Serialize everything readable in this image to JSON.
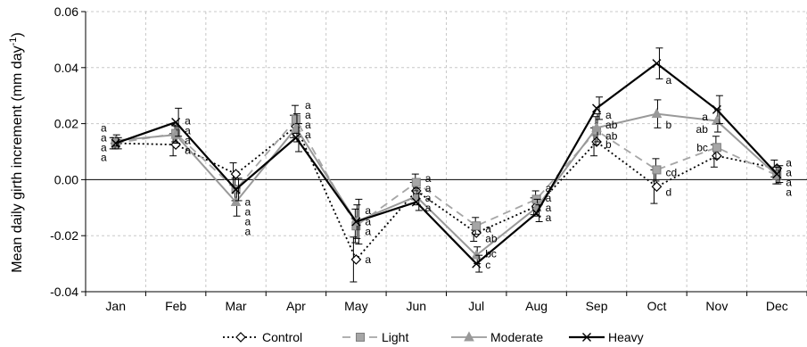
{
  "chart_data": {
    "type": "line",
    "title": "",
    "xlabel": "",
    "ylabel": "Mean daily girth increment (mm day",
    "ylabel_sup": "-1",
    "ylabel_close": ")",
    "categories": [
      "Jan",
      "Feb",
      "Mar",
      "Apr",
      "May",
      "Jun",
      "Jul",
      "Aug",
      "Sep",
      "Oct",
      "Nov",
      "Dec"
    ],
    "ylim": [
      -0.04,
      0.06
    ],
    "yticks": [
      -0.04,
      -0.02,
      0.0,
      0.02,
      0.04,
      0.06
    ],
    "ytick_labels": [
      "-0.04",
      "-0.02",
      "0.00",
      "0.02",
      "0.04",
      "0.06"
    ],
    "grid": true,
    "legend_position": "bottom",
    "series": [
      {
        "name": "Control",
        "color": "#000000",
        "dash": "dotted",
        "marker": "diamond",
        "values": [
          0.013,
          0.0125,
          0.002,
          0.019,
          -0.0285,
          -0.004,
          -0.019,
          -0.0095,
          0.0135,
          -0.0025,
          0.0085,
          0.004
        ],
        "err": [
          0.002,
          0.004,
          0.004,
          0.004,
          0.008,
          0.003,
          0.003,
          0.003,
          0.005,
          0.006,
          0.004,
          0.003
        ]
      },
      {
        "name": "Light",
        "color": "#a6a6a6",
        "dash": "dashed",
        "marker": "square",
        "values": [
          0.013,
          0.0165,
          -0.0035,
          0.0215,
          -0.0165,
          -0.001,
          -0.0165,
          -0.007,
          0.0175,
          0.0035,
          0.0115,
          0.0015
        ],
        "err": [
          0.002,
          0.003,
          0.004,
          0.005,
          0.006,
          0.003,
          0.003,
          0.003,
          0.005,
          0.004,
          0.004,
          0.003
        ]
      },
      {
        "name": "Moderate",
        "color": "#999999",
        "dash": "solid",
        "marker": "triangle",
        "values": [
          0.014,
          0.016,
          -0.008,
          0.0185,
          -0.015,
          -0.006,
          -0.027,
          -0.01,
          0.0185,
          0.0235,
          0.021,
          0.0015
        ],
        "err": [
          0.002,
          0.003,
          0.005,
          0.005,
          0.006,
          0.003,
          0.003,
          0.003,
          0.005,
          0.005,
          0.004,
          0.003
        ]
      },
      {
        "name": "Heavy",
        "color": "#000000",
        "dash": "solid",
        "marker": "x",
        "values": [
          0.013,
          0.0205,
          -0.0035,
          0.015,
          -0.015,
          -0.008,
          -0.03,
          -0.012,
          0.0255,
          0.0415,
          0.025,
          0.002
        ],
        "err": [
          0.002,
          0.005,
          0.004,
          0.005,
          0.008,
          0.003,
          0.003,
          0.003,
          0.004,
          0.0055,
          0.005,
          0.003
        ]
      }
    ],
    "annotations": [
      {
        "month": "Jan",
        "side": "left",
        "labels": [
          {
            "text": "a",
            "y": 0.0185
          },
          {
            "text": "a",
            "y": 0.015
          },
          {
            "text": "a",
            "y": 0.0115
          },
          {
            "text": "a",
            "y": 0.008
          }
        ]
      },
      {
        "month": "Feb",
        "side": "right",
        "labels": [
          {
            "text": "a",
            "y": 0.021
          },
          {
            "text": "a",
            "y": 0.0175
          },
          {
            "text": "a",
            "y": 0.014
          },
          {
            "text": "a",
            "y": 0.0105
          }
        ]
      },
      {
        "month": "Mar",
        "side": "right",
        "labels": [
          {
            "text": "a",
            "y": -0.008
          },
          {
            "text": "a",
            "y": -0.0115
          },
          {
            "text": "a",
            "y": -0.015
          },
          {
            "text": "a",
            "y": -0.0185
          }
        ]
      },
      {
        "month": "Apr",
        "side": "right",
        "labels": [
          {
            "text": "a",
            "y": 0.0265
          },
          {
            "text": "a",
            "y": 0.023
          },
          {
            "text": "a",
            "y": 0.0195
          },
          {
            "text": "a",
            "y": 0.016
          }
        ]
      },
      {
        "month": "May",
        "side": "right",
        "labels": [
          {
            "text": "a",
            "y": -0.011
          },
          {
            "text": "a",
            "y": -0.015
          },
          {
            "text": "a",
            "y": -0.0185
          },
          {
            "text": "a",
            "y": -0.0285
          }
        ]
      },
      {
        "month": "Jun",
        "side": "right",
        "labels": [
          {
            "text": "a",
            "y": 0.0005
          },
          {
            "text": "a",
            "y": -0.003
          },
          {
            "text": "a",
            "y": -0.0065
          },
          {
            "text": "a",
            "y": -0.01
          }
        ]
      },
      {
        "month": "Jul",
        "side": "right",
        "labels": [
          {
            "text": "a",
            "y": -0.0175
          },
          {
            "text": "ab",
            "y": -0.021
          },
          {
            "text": "bc",
            "y": -0.0265
          },
          {
            "text": "c",
            "y": -0.0305
          }
        ]
      },
      {
        "month": "Aug",
        "side": "right",
        "labels": [
          {
            "text": "a",
            "y": -0.003
          },
          {
            "text": "a",
            "y": -0.0065
          },
          {
            "text": "a",
            "y": -0.01
          },
          {
            "text": "a",
            "y": -0.0135
          }
        ]
      },
      {
        "month": "Sep",
        "side": "right",
        "labels": [
          {
            "text": "a",
            "y": 0.023
          },
          {
            "text": "ab",
            "y": 0.0195
          },
          {
            "text": "ab",
            "y": 0.0155
          },
          {
            "text": "b",
            "y": 0.0125
          }
        ]
      },
      {
        "month": "Oct",
        "side": "right",
        "labels": [
          {
            "text": "a",
            "y": 0.0355
          },
          {
            "text": "b",
            "y": 0.0195
          },
          {
            "text": "cd",
            "y": 0.0025
          },
          {
            "text": "d",
            "y": -0.0045
          }
        ]
      },
      {
        "month": "Nov",
        "side": "left",
        "labels": [
          {
            "text": "a",
            "y": 0.0225
          },
          {
            "text": "ab",
            "y": 0.018
          },
          {
            "text": "bc",
            "y": 0.0115
          }
        ]
      },
      {
        "month": "Dec",
        "side": "right",
        "labels": [
          {
            "text": "a",
            "y": 0.006
          },
          {
            "text": "a",
            "y": 0.0025
          },
          {
            "text": "a",
            "y": -0.001
          },
          {
            "text": "a",
            "y": -0.0045
          }
        ]
      }
    ]
  }
}
